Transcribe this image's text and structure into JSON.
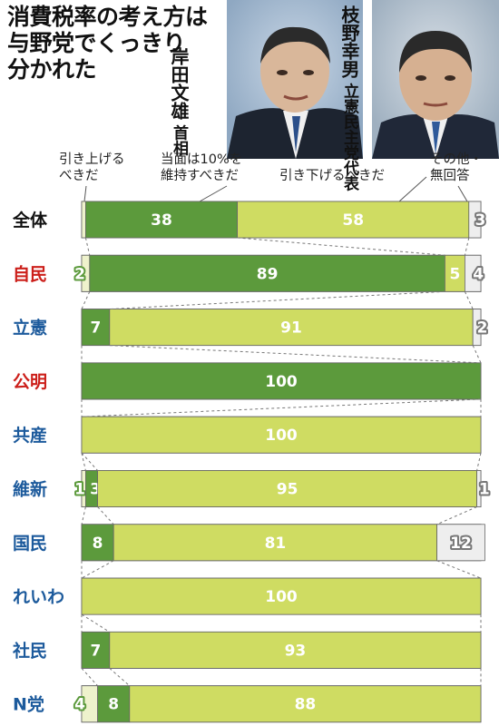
{
  "title_lines": [
    "消費税率の考え方は",
    "与野党でくっきり",
    "分かれた"
  ],
  "people": [
    {
      "name": "岸田文雄",
      "role": "首相"
    },
    {
      "name": "枝野幸男",
      "role": "立憲民主党代表"
    }
  ],
  "headers": {
    "raise": [
      "引き上げる",
      "べきだ"
    ],
    "keep": [
      "当面は10%を",
      "維持すべきだ"
    ],
    "lower": [
      "引き下げるべきだ"
    ],
    "other": [
      "その他・",
      "無回答"
    ]
  },
  "colors": {
    "raise": "#eef2cc",
    "keep": "#5c9a3c",
    "lower": "#cfdc62",
    "other": "#eeeeee",
    "label_red": "#cc1f1a",
    "label_blue": "#1c5a9c",
    "label_black": "#111111"
  },
  "chart_data": {
    "type": "bar",
    "orientation": "horizontal",
    "stacked": true,
    "unit": "%",
    "categories": [
      "全体",
      "自民",
      "立憲",
      "公明",
      "共産",
      "維新",
      "国民",
      "れいわ",
      "社民",
      "N党"
    ],
    "category_colors": [
      "black",
      "red",
      "blue",
      "red",
      "blue",
      "blue",
      "blue",
      "blue",
      "blue",
      "blue"
    ],
    "series": [
      {
        "key": "raise",
        "name": "引き上げるべきだ",
        "values": [
          1,
          2,
          0,
          0,
          0,
          1,
          0,
          0,
          0,
          4
        ]
      },
      {
        "key": "keep",
        "name": "当面は10%を維持すべきだ",
        "values": [
          38,
          89,
          7,
          100,
          0,
          3,
          8,
          0,
          7,
          8
        ]
      },
      {
        "key": "lower",
        "name": "引き下げるべきだ",
        "values": [
          58,
          5,
          91,
          0,
          100,
          95,
          81,
          100,
          93,
          88
        ]
      },
      {
        "key": "other",
        "name": "その他・無回答",
        "values": [
          3,
          4,
          2,
          0,
          0,
          1,
          12,
          0,
          0,
          0
        ]
      }
    ],
    "value_labels": {
      "raise": [
        "1%",
        "2",
        "",
        "",
        "",
        "1",
        "",
        "",
        "",
        "4"
      ],
      "keep": [
        "38",
        "89",
        "7",
        "100",
        "",
        "3",
        "8",
        "",
        "7",
        "8"
      ],
      "lower": [
        "58",
        "5",
        "91",
        "",
        "100",
        "95",
        "81",
        "100",
        "93",
        "88"
      ],
      "other": [
        "3",
        "4",
        "2",
        "",
        "",
        "1",
        "12",
        "",
        "",
        ""
      ]
    }
  }
}
